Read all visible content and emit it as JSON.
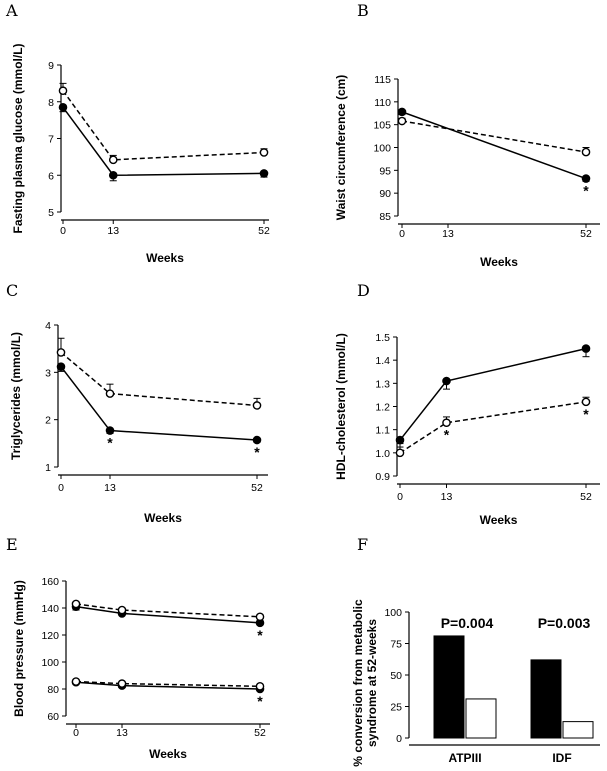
{
  "chart_data": [
    {
      "id": "A",
      "letter": "A",
      "type": "line",
      "ylabel": "Fasting plasma glucose (mmol/L)",
      "xlabel": "Weeks",
      "x": [
        0,
        13,
        52
      ],
      "xlim": [
        0,
        52
      ],
      "xticks": [
        "0",
        "13",
        "52"
      ],
      "ylim": [
        5,
        9
      ],
      "yticks": [
        5,
        6,
        7,
        8,
        9
      ],
      "series": [
        {
          "marker": "filled",
          "line": "solid",
          "values": [
            7.85,
            6.0,
            6.05
          ],
          "err": [
            0.12,
            0.15,
            0.1
          ]
        },
        {
          "marker": "open",
          "line": "dashed",
          "values": [
            8.3,
            6.42,
            6.62
          ],
          "err": [
            0.2,
            0.12,
            0.1
          ]
        }
      ],
      "stars": []
    },
    {
      "id": "B",
      "letter": "B",
      "type": "line",
      "ylabel": "Waist circumference (cm)",
      "xlabel": "Weeks",
      "x": [
        0,
        52
      ],
      "xlim": [
        0,
        52
      ],
      "xticks": [
        "0",
        "13",
        "52"
      ],
      "ylim": [
        85,
        115
      ],
      "yticks": [
        85,
        90,
        95,
        100,
        105,
        110,
        115
      ],
      "series": [
        {
          "marker": "filled",
          "line": "solid",
          "values": [
            107.8,
            93.2
          ],
          "err": [
            0.6,
            0.6
          ]
        },
        {
          "marker": "open",
          "line": "dashed",
          "values": [
            105.8,
            99.0
          ],
          "err": [
            0.6,
            1.0
          ]
        }
      ],
      "stars": [
        {
          "x": 52,
          "text": "*",
          "near": "filled"
        }
      ]
    },
    {
      "id": "C",
      "letter": "C",
      "type": "line",
      "ylabel": "Triglycerides (mmol/L)",
      "xlabel": "Weeks",
      "x": [
        0,
        13,
        52
      ],
      "xlim": [
        0,
        52
      ],
      "xticks": [
        "0",
        "13",
        "52"
      ],
      "ylim": [
        1,
        4
      ],
      "yticks": [
        1,
        2,
        3,
        4
      ],
      "series": [
        {
          "marker": "filled",
          "line": "solid",
          "values": [
            3.12,
            1.77,
            1.57
          ],
          "err": [
            0.1,
            0.06,
            0.05
          ]
        },
        {
          "marker": "open",
          "line": "dashed",
          "values": [
            3.42,
            2.55,
            2.3
          ],
          "err": [
            0.3,
            0.2,
            0.15
          ]
        }
      ],
      "stars": [
        {
          "x": 13,
          "text": "*",
          "near": "filled"
        },
        {
          "x": 52,
          "text": "*",
          "near": "filled"
        }
      ]
    },
    {
      "id": "D",
      "letter": "D",
      "type": "line",
      "ylabel": "HDL-cholesterol (mmol/L)",
      "xlabel": "Weeks",
      "x": [
        0,
        13,
        52
      ],
      "xlim": [
        0,
        52
      ],
      "xticks": [
        "0",
        "13",
        "52"
      ],
      "ylim": [
        0.9,
        1.5
      ],
      "yticks": [
        "0.9",
        "1.0",
        "1.1",
        "1.2",
        "1.3",
        "1.4",
        "1.5"
      ],
      "series": [
        {
          "marker": "filled",
          "line": "solid",
          "values": [
            1.055,
            1.31,
            1.45
          ],
          "err": [
            0.03,
            0.035,
            0.035
          ]
        },
        {
          "marker": "open",
          "line": "dashed",
          "values": [
            1.0,
            1.13,
            1.22
          ],
          "err": [
            0.04,
            0.025,
            0.02
          ]
        }
      ],
      "stars": [
        {
          "x": 13,
          "text": "*",
          "near": "open"
        },
        {
          "x": 52,
          "text": "*",
          "near": "open"
        }
      ]
    },
    {
      "id": "E",
      "letter": "E",
      "type": "line",
      "ylabel": "Blood pressure (mmHg)",
      "xlabel": "Weeks",
      "x": [
        0,
        13,
        52
      ],
      "xlim": [
        0,
        52
      ],
      "xticks": [
        "0",
        "13",
        "52"
      ],
      "ylim": [
        60,
        160
      ],
      "yticks": [
        60,
        80,
        100,
        120,
        140,
        160
      ],
      "series": [
        {
          "marker": "filled",
          "line": "solid",
          "values": [
            141,
            136,
            129
          ],
          "err": [
            2.5,
            1.5,
            1.5
          ]
        },
        {
          "marker": "open",
          "line": "dashed",
          "values": [
            143,
            138.5,
            133.5
          ],
          "err": [
            1.5,
            1.5,
            1.5
          ]
        },
        {
          "marker": "filled",
          "line": "solid",
          "values": [
            85,
            82.5,
            80
          ],
          "err": [
            1,
            1,
            1
          ]
        },
        {
          "marker": "open",
          "line": "dashed",
          "values": [
            85.5,
            84,
            82
          ],
          "err": [
            1,
            1,
            1
          ]
        }
      ],
      "stars": [
        {
          "x": 52,
          "text": "*",
          "near": "sys"
        },
        {
          "x": 52,
          "text": "*",
          "near": "dia"
        }
      ]
    },
    {
      "id": "F",
      "letter": "F",
      "type": "bar",
      "ylabel": "% conversion from metabolic syndrome at 52-weeks",
      "categories": [
        "ATPIII",
        "IDF"
      ],
      "ylim": [
        0,
        100
      ],
      "yticks": [
        0,
        25,
        50,
        75,
        100
      ],
      "series": [
        {
          "fill": "black",
          "values": [
            81,
            62
          ]
        },
        {
          "fill": "white",
          "values": [
            31,
            13
          ]
        }
      ],
      "annotations": [
        "P=0.004",
        "P=0.003"
      ]
    }
  ]
}
